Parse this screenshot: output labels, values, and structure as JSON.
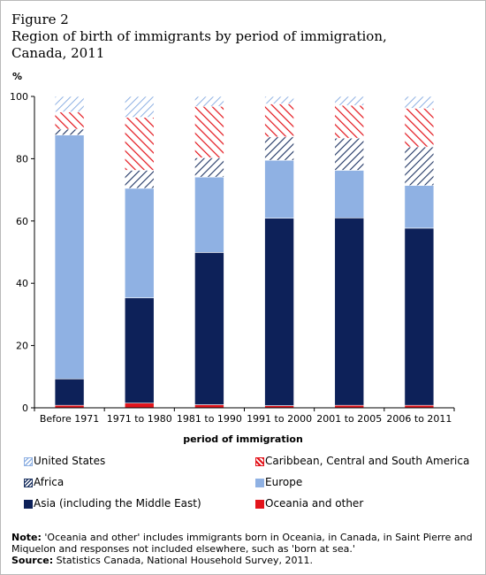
{
  "figure_label": "Figure 2",
  "title": "Region of birth of immigrants by period of immigration,  Canada, 2011",
  "unit_label": "%",
  "legend": [
    {
      "key": "us",
      "label": "United States"
    },
    {
      "key": "carib",
      "label": "Caribbean, Central and South America"
    },
    {
      "key": "africa",
      "label": "Africa"
    },
    {
      "key": "europe",
      "label": "Europe"
    },
    {
      "key": "asia",
      "label": "Asia (including the Middle East)"
    },
    {
      "key": "oceania",
      "label": "Oceania and other"
    }
  ],
  "note": {
    "note_label": "Note:",
    "note_text": "'Oceania and other' includes immigrants born in Oceania, in Canada, in Saint Pierre and Miquelon and responses not included elsewhere, such as 'born at sea.'",
    "source_label": "Source:",
    "source_text": "Statistics Canada, National Household Survey, 2011."
  },
  "colors": {
    "asia": "#0d2159",
    "oceania": "#e3141b",
    "europe": "#8fb1e3",
    "africa_line": "#1e3463",
    "carib_line": "#e3141b",
    "us_line": "#8fb1e3",
    "axis": "#000000"
  },
  "chart_data": {
    "type": "bar",
    "stacked": true,
    "xlabel": "period of immigration",
    "ylabel": "%",
    "ylim": [
      0,
      100
    ],
    "yticks": [
      0,
      20,
      40,
      60,
      80,
      100
    ],
    "grid": false,
    "legend_position": "bottom",
    "categories": [
      "Before 1971",
      "1971 to 1980",
      "1981 to 1990",
      "1991 to 2000",
      "2001 to 2005",
      "2006 to 2011"
    ],
    "series": [
      {
        "key": "oceania",
        "name": "Oceania and other",
        "values": [
          0.8,
          1.5,
          1.0,
          0.7,
          0.8,
          0.8
        ]
      },
      {
        "key": "asia",
        "name": "Asia (including the Middle East)",
        "values": [
          8.5,
          33.8,
          48.9,
          60.2,
          60.2,
          56.9
        ]
      },
      {
        "key": "europe",
        "name": "Europe",
        "values": [
          78.3,
          35.2,
          24.2,
          18.6,
          15.3,
          13.7
        ]
      },
      {
        "key": "africa",
        "name": "Africa",
        "values": [
          1.9,
          5.8,
          6.2,
          7.5,
          10.3,
          12.4
        ]
      },
      {
        "key": "carib",
        "name": "Caribbean, Central and South America",
        "values": [
          5.5,
          17.0,
          16.5,
          10.6,
          10.5,
          12.4
        ]
      },
      {
        "key": "us",
        "name": "United States",
        "values": [
          5.0,
          6.7,
          3.2,
          2.4,
          2.9,
          3.8
        ]
      }
    ]
  }
}
